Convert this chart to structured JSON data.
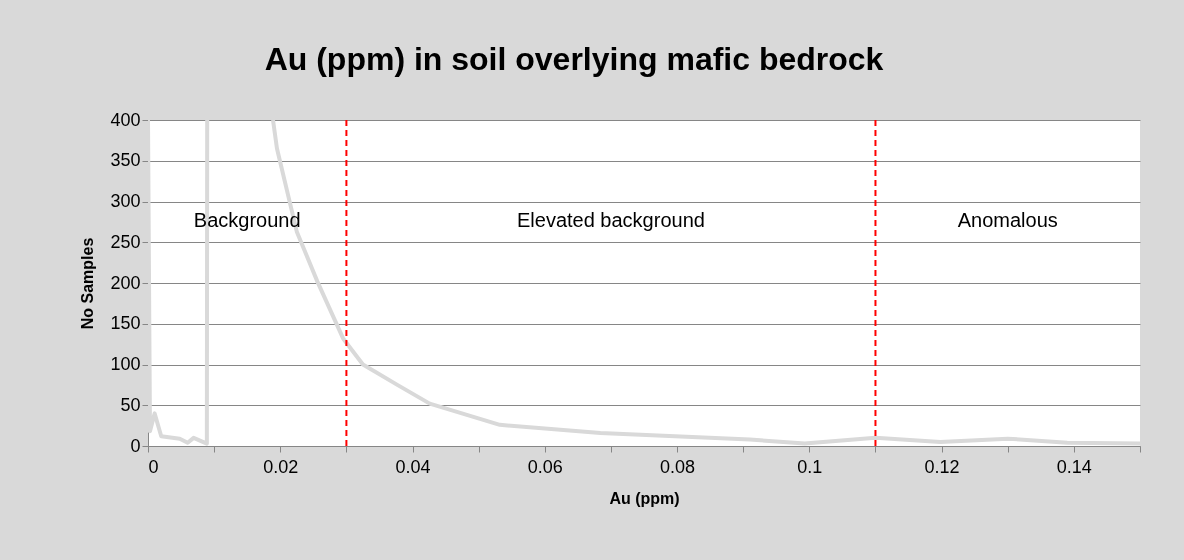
{
  "chart_data": {
    "type": "line",
    "title": "Au (ppm) in soil overlying mafic bedrock",
    "xlabel": "Au (ppm)",
    "ylabel": "No Samples",
    "series": [
      {
        "color": "#d9d9d9",
        "x": [
          0,
          0.0003,
          0.001,
          0.002,
          0.0048,
          0.006,
          0.0069,
          0.0089,
          0.00895,
          0.014,
          0.0189,
          0.0195,
          0.0225,
          0.0256,
          0.0295,
          0.0325,
          0.0377,
          0.0426,
          0.0532,
          0.0684,
          0.091,
          0.0993,
          0.11,
          0.1198,
          0.13,
          0.139,
          0.15
        ],
        "values": [
          400,
          18,
          40,
          12,
          9,
          4,
          10,
          3,
          400,
          null,
          400,
          365,
          263,
          202,
          132,
          100,
          75,
          52,
          26,
          16,
          8,
          3,
          10,
          5,
          9,
          4,
          3
        ]
      }
    ],
    "xlim": [
      0,
      0.15
    ],
    "xticks": [
      0,
      {
        "value": 0.01,
        "label": null
      },
      0.02,
      {
        "value": 0.03,
        "label": null
      },
      0.04,
      {
        "value": 0.05,
        "label": null
      },
      0.06,
      {
        "value": 0.07,
        "label": null
      },
      0.08,
      {
        "value": 0.09,
        "label": null
      },
      0.1,
      {
        "value": 0.11,
        "label": null
      },
      0.12,
      {
        "value": 0.13,
        "label": null
      },
      0.14,
      {
        "value": 0.15,
        "label": null
      }
    ],
    "ylim": [
      0,
      400
    ],
    "yticks": [
      0,
      50,
      100,
      150,
      200,
      250,
      300,
      350,
      400
    ],
    "grid": "y",
    "marker": "none",
    "line_style": "solid",
    "ref_lines": [
      {
        "axis": "x",
        "value": 0.03,
        "color": "#ff0000",
        "line_style": "dashed"
      },
      {
        "axis": "x",
        "value": 0.11,
        "color": "#ff0000",
        "line_style": "dashed"
      }
    ],
    "annotations": [
      "Background",
      "Elevated background",
      "Anomalous"
    ]
  }
}
